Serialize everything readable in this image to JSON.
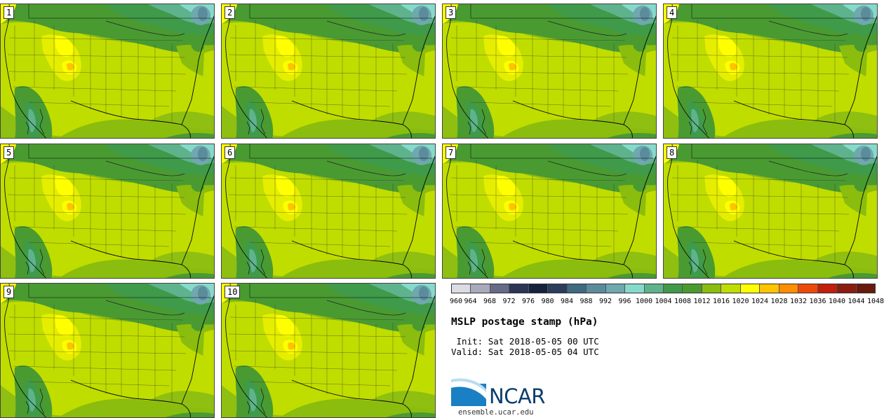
{
  "title": "MSLP postage stamp (hPa)",
  "init": {
    "label": " Init:",
    "value": "Sat 2018-05-05 00 UTC"
  },
  "valid": {
    "label": "Valid:",
    "value": "Sat 2018-05-05 04 UTC"
  },
  "members": [
    "1",
    "2",
    "3",
    "4",
    "5",
    "6",
    "7",
    "8",
    "9",
    "10"
  ],
  "colorbar": {
    "ticks": [
      "960",
      "964",
      "968",
      "972",
      "976",
      "980",
      "984",
      "988",
      "992",
      "996",
      "1000",
      "1004",
      "1008",
      "1012",
      "1016",
      "1020",
      "1024",
      "1028",
      "1032",
      "1036",
      "1040",
      "1044",
      "1048"
    ],
    "colors": [
      "#dcdde4",
      "#a8a9bc",
      "#666b86",
      "#2b3656",
      "#16233d",
      "#2a3e5c",
      "#3f6a82",
      "#5b8c9c",
      "#6fa8ae",
      "#86dacb",
      "#5fb38c",
      "#3f9a4a",
      "#4a9a32",
      "#8abd0d",
      "#c0dd00",
      "#ffff00",
      "#ffc300",
      "#ff8e00",
      "#ec4a0a",
      "#c1200a",
      "#8b1d10",
      "#6a1a0d"
    ]
  },
  "logo": {
    "brand": "NCAR",
    "site": "ensemble.ucar.edu"
  }
}
